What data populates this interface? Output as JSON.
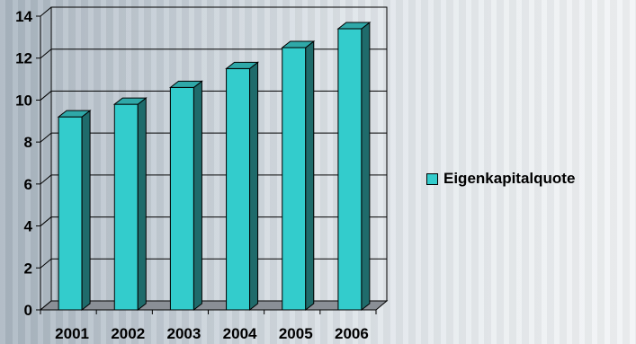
{
  "chart_data": {
    "type": "bar",
    "categories": [
      "2001",
      "2002",
      "2003",
      "2004",
      "2005",
      "2006"
    ],
    "series": [
      {
        "name": "Eigenkapitalquote",
        "values": [
          9.2,
          9.8,
          10.6,
          11.5,
          12.5,
          13.4
        ]
      }
    ],
    "ylim": [
      0,
      14
    ],
    "yticks": [
      0,
      2,
      4,
      6,
      8,
      10,
      12,
      14
    ],
    "grid": true,
    "legend": "right",
    "bar_color": "#33cccc",
    "bar_side_color": "#1f6b6b",
    "bar_top_color": "#2fa8a8",
    "bar_outline": "#000000"
  },
  "legend": {
    "label": "Eigenkapitalquote"
  }
}
